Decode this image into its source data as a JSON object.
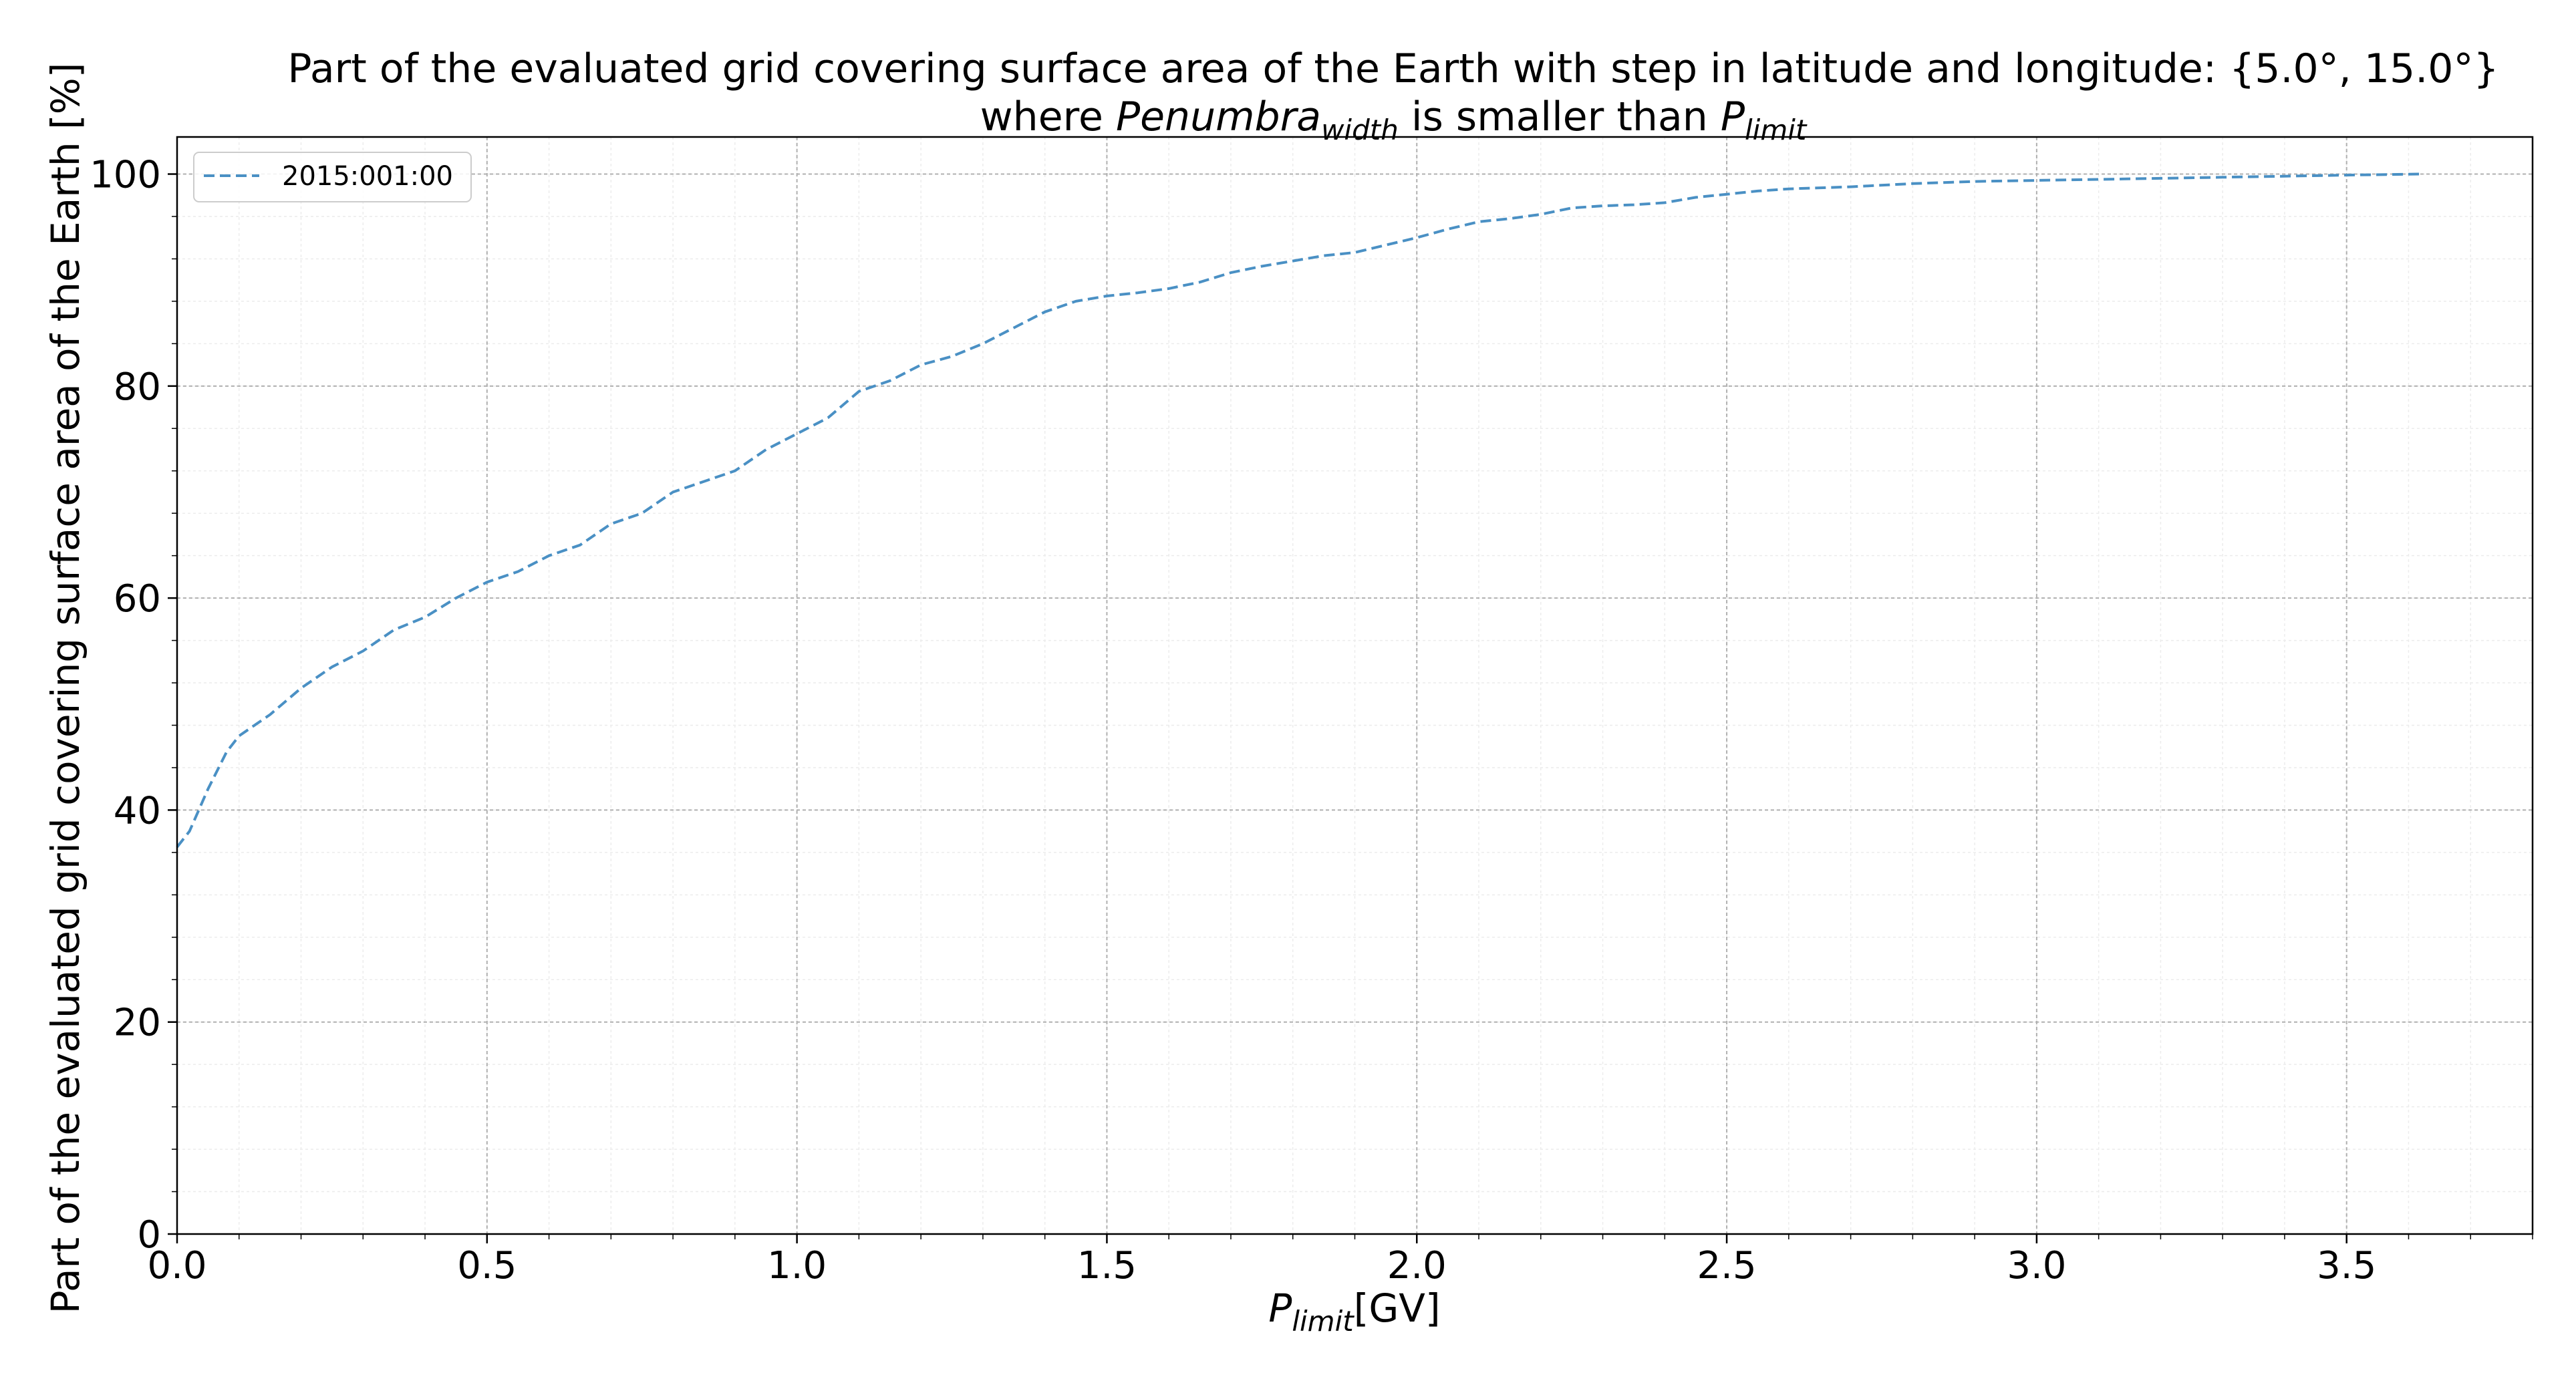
{
  "chart_data": {
    "type": "line",
    "title_line1": "Part of the evaluated grid covering surface area of the Earth with step in latitude and longitude: {5.0°, 15.0°}",
    "title_line2": {
      "prefix": "where ",
      "var1": "Penumbra",
      "var1_sub": "width",
      "middle": " is smaller than ",
      "var2": "P",
      "var2_sub": "limit"
    },
    "xlabel": {
      "var": "P",
      "sub": "limit",
      "unit": "[GV]"
    },
    "ylabel": "Part of the evaluated grid covering surface area of the Earth  [%]",
    "xlim": [
      0.0,
      3.8
    ],
    "ylim": [
      0,
      103.5
    ],
    "x_ticks": [
      0.0,
      0.5,
      1.0,
      1.5,
      2.0,
      2.5,
      3.0,
      3.5
    ],
    "x_tick_labels": [
      "0.0",
      "0.5",
      "1.0",
      "1.5",
      "2.0",
      "2.5",
      "3.0",
      "3.5"
    ],
    "y_ticks": [
      0,
      20,
      40,
      60,
      80,
      100
    ],
    "y_tick_labels": [
      "0",
      "20",
      "40",
      "60",
      "80",
      "100"
    ],
    "grid": true,
    "legend_position": "top-left",
    "series": [
      {
        "name": "2015:001:00",
        "color": "#4a90c4",
        "line_style": "dashed",
        "x": [
          0.0,
          0.02,
          0.05,
          0.08,
          0.1,
          0.15,
          0.2,
          0.25,
          0.3,
          0.35,
          0.4,
          0.45,
          0.5,
          0.55,
          0.6,
          0.65,
          0.7,
          0.75,
          0.8,
          0.85,
          0.9,
          0.95,
          1.0,
          1.05,
          1.1,
          1.15,
          1.2,
          1.25,
          1.3,
          1.35,
          1.4,
          1.45,
          1.5,
          1.55,
          1.6,
          1.65,
          1.7,
          1.75,
          1.8,
          1.85,
          1.9,
          1.95,
          2.0,
          2.05,
          2.1,
          2.15,
          2.2,
          2.25,
          2.3,
          2.35,
          2.4,
          2.45,
          2.5,
          2.55,
          2.6,
          2.7,
          2.8,
          2.9,
          3.0,
          3.1,
          3.2,
          3.3,
          3.4,
          3.5,
          3.62
        ],
        "y": [
          36.5,
          38.0,
          42.0,
          45.5,
          47.0,
          49.0,
          51.5,
          53.5,
          55.0,
          57.0,
          58.2,
          60.0,
          61.5,
          62.5,
          64.0,
          65.0,
          67.0,
          68.0,
          70.0,
          71.0,
          72.0,
          74.0,
          75.5,
          77.0,
          79.5,
          80.5,
          82.0,
          82.8,
          84.0,
          85.5,
          87.0,
          88.0,
          88.5,
          88.8,
          89.2,
          89.8,
          90.7,
          91.3,
          91.8,
          92.3,
          92.6,
          93.3,
          94.0,
          94.8,
          95.5,
          95.8,
          96.2,
          96.8,
          97.0,
          97.1,
          97.3,
          97.8,
          98.1,
          98.4,
          98.6,
          98.8,
          99.1,
          99.3,
          99.4,
          99.5,
          99.6,
          99.7,
          99.8,
          99.9,
          100.0
        ]
      }
    ]
  }
}
